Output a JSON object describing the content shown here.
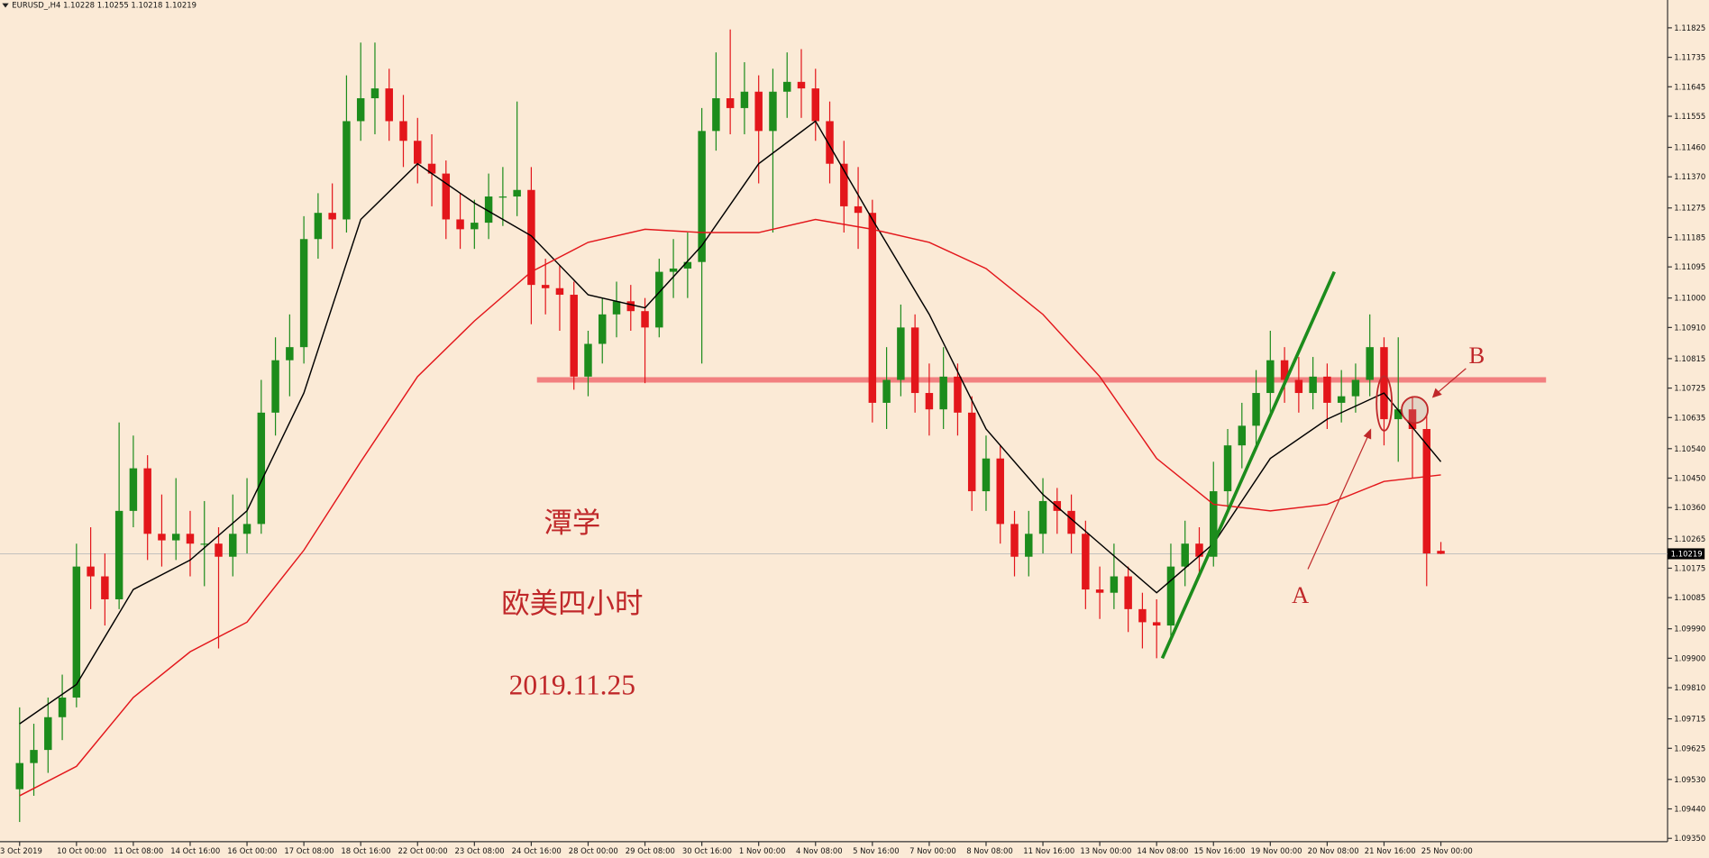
{
  "chart_data": {
    "type": "candlestick",
    "title": "EURUSD_,H4",
    "up_color": "#1c8c1c",
    "down_color": "#e3161b",
    "ylim": [
      1.0934,
      1.1191
    ],
    "yticks": [
      1.11825,
      1.11735,
      1.11645,
      1.11555,
      {
        "value": 1.1146,
        "label": "1.11460"
      },
      {
        "value": 1.1137,
        "label": "1.11370"
      },
      1.11275,
      1.11185,
      1.11095,
      {
        "value": 1.11,
        "label": "1.11000"
      },
      {
        "value": 1.1091,
        "label": "1.10910"
      },
      1.10815,
      1.10725,
      1.10635,
      {
        "value": 1.1054,
        "label": "1.10540"
      },
      {
        "value": 1.1045,
        "label": "1.10450"
      },
      {
        "value": 1.1036,
        "label": "1.10360"
      },
      1.10265,
      1.10175,
      1.10085,
      {
        "value": 1.0999,
        "label": "1.09990"
      },
      {
        "value": 1.099,
        "label": "1.09900"
      },
      {
        "value": 1.0981,
        "label": "1.09810"
      },
      1.09715,
      1.09625,
      {
        "value": 1.0953,
        "label": "1.09530"
      },
      {
        "value": 1.0944,
        "label": "1.09440"
      },
      {
        "value": 1.0935,
        "label": "1.09350"
      }
    ],
    "categories": [
      "3 Oct 2019",
      null,
      null,
      null,
      "10 Oct 00:00",
      null,
      null,
      null,
      "11 Oct 08:00",
      null,
      null,
      null,
      "14 Oct 16:00",
      null,
      null,
      null,
      "16 Oct 00:00",
      null,
      null,
      null,
      "17 Oct 08:00",
      null,
      null,
      null,
      "18 Oct 16:00",
      null,
      null,
      null,
      "22 Oct 00:00",
      null,
      null,
      null,
      "23 Oct 08:00",
      null,
      null,
      null,
      "24 Oct 16:00",
      null,
      null,
      null,
      "28 Oct 00:00",
      null,
      null,
      null,
      "29 Oct 08:00",
      null,
      null,
      null,
      "30 Oct 16:00",
      null,
      null,
      null,
      "1 Nov 00:00",
      null,
      null,
      null,
      "4 Nov 08:00",
      null,
      null,
      null,
      "5 Nov 16:00",
      null,
      null,
      null,
      "7 Nov 00:00",
      null,
      null,
      null,
      "8 Nov 08:00",
      null,
      null,
      null,
      "11 Nov 16:00",
      null,
      null,
      null,
      "13 Nov 00:00",
      null,
      null,
      null,
      "14 Nov 08:00",
      null,
      null,
      null,
      "15 Nov 16:00",
      null,
      null,
      null,
      "19 Nov 00:00",
      null,
      null,
      null,
      "20 Nov 08:00",
      null,
      null,
      null,
      "21 Nov 16:00",
      null,
      null,
      null,
      "25 Nov 00:00"
    ],
    "ohlc": [
      [
        1.095,
        1.0975,
        1.094,
        1.0958
      ],
      [
        1.0958,
        1.097,
        1.0948,
        1.0962
      ],
      [
        1.0962,
        1.0978,
        1.0955,
        1.0972
      ],
      [
        1.0972,
        1.0985,
        1.0965,
        1.0978
      ],
      [
        1.0978,
        1.1025,
        1.0975,
        1.1018
      ],
      [
        1.1018,
        1.103,
        1.1005,
        1.1015
      ],
      [
        1.1015,
        1.1022,
        1.1,
        1.1008
      ],
      [
        1.1008,
        1.1062,
        1.1005,
        1.1035
      ],
      [
        1.1035,
        1.1058,
        1.103,
        1.1048
      ],
      [
        1.1048,
        1.1052,
        1.102,
        1.1028
      ],
      [
        1.1028,
        1.104,
        1.1018,
        1.1026
      ],
      [
        1.1026,
        1.1045,
        1.102,
        1.1028
      ],
      [
        1.1028,
        1.1035,
        1.1015,
        1.1025
      ],
      [
        1.1025,
        1.1038,
        1.1012,
        1.1025
      ],
      [
        1.1025,
        1.103,
        1.0993,
        1.1021
      ],
      [
        1.1021,
        1.104,
        1.1015,
        1.1028
      ],
      [
        1.1028,
        1.1045,
        1.1022,
        1.1031
      ],
      [
        1.1031,
        1.1075,
        1.1028,
        1.1065
      ],
      [
        1.1065,
        1.1088,
        1.1058,
        1.1081
      ],
      [
        1.1081,
        1.1095,
        1.107,
        1.1085
      ],
      [
        1.1085,
        1.1125,
        1.108,
        1.1118
      ],
      [
        1.1118,
        1.1132,
        1.1112,
        1.1126
      ],
      [
        1.1126,
        1.1135,
        1.1115,
        1.1124
      ],
      [
        1.1124,
        1.1168,
        1.112,
        1.1154
      ],
      [
        1.1154,
        1.1178,
        1.1148,
        1.1161
      ],
      [
        1.1161,
        1.1178,
        1.115,
        1.1164
      ],
      [
        1.1164,
        1.117,
        1.1148,
        1.1154
      ],
      [
        1.1154,
        1.1162,
        1.114,
        1.1148
      ],
      [
        1.1148,
        1.1155,
        1.1135,
        1.1141
      ],
      [
        1.1141,
        1.115,
        1.1128,
        1.1138
      ],
      [
        1.1138,
        1.1142,
        1.1118,
        1.1124
      ],
      [
        1.1124,
        1.1132,
        1.1115,
        1.1121
      ],
      [
        1.1121,
        1.113,
        1.1115,
        1.1123
      ],
      [
        1.1123,
        1.1138,
        1.1118,
        1.1131
      ],
      [
        1.1131,
        1.114,
        1.1122,
        1.1131
      ],
      [
        1.1131,
        1.116,
        1.1125,
        1.1133
      ],
      [
        1.1133,
        1.114,
        1.1092,
        1.1104
      ],
      [
        1.1104,
        1.1112,
        1.1095,
        1.1103
      ],
      [
        1.1103,
        1.111,
        1.109,
        1.1101
      ],
      [
        1.1101,
        1.1105,
        1.1072,
        1.1076
      ],
      [
        1.1076,
        1.109,
        1.107,
        1.1086
      ],
      [
        1.1086,
        1.11,
        1.108,
        1.1095
      ],
      [
        1.1095,
        1.1105,
        1.1088,
        1.1099
      ],
      [
        1.1099,
        1.1104,
        1.109,
        1.1096
      ],
      [
        1.1096,
        1.11,
        1.1074,
        1.1091
      ],
      [
        1.1091,
        1.1112,
        1.1088,
        1.1108
      ],
      [
        1.1108,
        1.1118,
        1.11,
        1.1109
      ],
      [
        1.1109,
        1.112,
        1.11,
        1.1111
      ],
      [
        1.1111,
        1.1158,
        1.108,
        1.1151
      ],
      [
        1.1151,
        1.1175,
        1.1145,
        1.1161
      ],
      [
        1.1161,
        1.1182,
        1.115,
        1.1158
      ],
      [
        1.1158,
        1.1172,
        1.115,
        1.1163
      ],
      [
        1.1163,
        1.1168,
        1.1135,
        1.1151
      ],
      [
        1.1151,
        1.117,
        1.112,
        1.1163
      ],
      [
        1.1163,
        1.1175,
        1.1155,
        1.1166
      ],
      [
        1.1166,
        1.1176,
        1.1155,
        1.1164
      ],
      [
        1.1164,
        1.117,
        1.1148,
        1.1154
      ],
      [
        1.1154,
        1.116,
        1.1135,
        1.1141
      ],
      [
        1.1141,
        1.1148,
        1.112,
        1.1128
      ],
      [
        1.1128,
        1.114,
        1.1115,
        1.1126
      ],
      [
        1.1126,
        1.113,
        1.1062,
        1.1068
      ],
      [
        1.1068,
        1.1085,
        1.106,
        1.1075
      ],
      [
        1.1075,
        1.1098,
        1.107,
        1.1091
      ],
      [
        1.1091,
        1.1095,
        1.1065,
        1.1071
      ],
      [
        1.1071,
        1.108,
        1.1058,
        1.1066
      ],
      [
        1.1066,
        1.1085,
        1.106,
        1.1076
      ],
      [
        1.1076,
        1.108,
        1.1058,
        1.1065
      ],
      [
        1.1065,
        1.107,
        1.1035,
        1.1041
      ],
      [
        1.1041,
        1.1058,
        1.1035,
        1.1051
      ],
      [
        1.1051,
        1.1055,
        1.1025,
        1.1031
      ],
      [
        1.1031,
        1.1035,
        1.1015,
        1.1021
      ],
      [
        1.1021,
        1.1035,
        1.1015,
        1.1028
      ],
      [
        1.1028,
        1.1045,
        1.1022,
        1.1038
      ],
      [
        1.1038,
        1.1042,
        1.1028,
        1.1035
      ],
      [
        1.1035,
        1.104,
        1.1022,
        1.1028
      ],
      [
        1.1028,
        1.1032,
        1.1005,
        1.1011
      ],
      [
        1.1011,
        1.1018,
        1.1002,
        1.101
      ],
      [
        1.101,
        1.1025,
        1.1005,
        1.1015
      ],
      [
        1.1015,
        1.1018,
        1.0998,
        1.1005
      ],
      [
        1.1005,
        1.101,
        1.0993,
        1.1001
      ],
      [
        1.1001,
        1.1008,
        1.099,
        1.1
      ],
      [
        1.1,
        1.1025,
        1.0995,
        1.1018
      ],
      [
        1.1018,
        1.1032,
        1.1012,
        1.1025
      ],
      [
        1.1025,
        1.103,
        1.1015,
        1.1021
      ],
      [
        1.1021,
        1.105,
        1.1018,
        1.1041
      ],
      [
        1.1041,
        1.106,
        1.1035,
        1.1055
      ],
      [
        1.1055,
        1.1068,
        1.1048,
        1.1061
      ],
      [
        1.1061,
        1.1078,
        1.1055,
        1.1071
      ],
      [
        1.1071,
        1.109,
        1.1065,
        1.1081
      ],
      [
        1.1081,
        1.1085,
        1.1068,
        1.1075
      ],
      [
        1.1075,
        1.1082,
        1.1065,
        1.1071
      ],
      [
        1.1071,
        1.1082,
        1.1066,
        1.1076
      ],
      [
        1.1076,
        1.108,
        1.106,
        1.1068
      ],
      [
        1.1068,
        1.1078,
        1.1062,
        1.107
      ],
      [
        1.107,
        1.108,
        1.1065,
        1.1075
      ],
      [
        1.1075,
        1.1095,
        1.107,
        1.1085
      ],
      [
        1.1085,
        1.1088,
        1.1055,
        1.1063
      ],
      [
        1.1063,
        1.1088,
        1.105,
        1.1066
      ],
      [
        1.1066,
        1.107,
        1.1045,
        1.106
      ],
      [
        1.106,
        1.1064,
        1.1012,
        1.1022
      ],
      [
        1.10228,
        1.10255,
        1.10218,
        1.10219
      ]
    ],
    "lines": [
      {
        "color": "#000000",
        "x": [
          0,
          4,
          8,
          12,
          16,
          20,
          24,
          28,
          32,
          36,
          40,
          44,
          48,
          52,
          56,
          60,
          64,
          68,
          72,
          76,
          80,
          84,
          88,
          92,
          96,
          100
        ],
        "values": [
          1.097,
          1.0982,
          1.1011,
          1.102,
          1.1035,
          1.1071,
          1.1124,
          1.1141,
          1.1129,
          1.1119,
          1.1101,
          1.1097,
          1.1116,
          1.1141,
          1.1154,
          1.1124,
          1.1095,
          1.106,
          1.104,
          1.1025,
          1.101,
          1.1025,
          1.1051,
          1.1063,
          1.1071,
          1.105
        ]
      },
      {
        "color": "#e3161b",
        "x": [
          0,
          4,
          8,
          12,
          16,
          20,
          24,
          28,
          32,
          36,
          40,
          44,
          48,
          52,
          56,
          60,
          64,
          68,
          72,
          76,
          80,
          84,
          88,
          92,
          96,
          100
        ],
        "values": [
          1.0948,
          1.0957,
          1.0978,
          1.0992,
          1.1001,
          1.1023,
          1.105,
          1.1076,
          1.1093,
          1.1108,
          1.1117,
          1.1121,
          1.112,
          1.112,
          1.1124,
          1.1121,
          1.1117,
          1.1109,
          1.1095,
          1.1076,
          1.1051,
          1.1037,
          1.1035,
          1.1037,
          1.1044,
          1.1046
        ]
      }
    ],
    "level": {
      "color": "#f28080",
      "x": [
        36.4,
        107.4
      ],
      "value": 1.1075
    },
    "trend": {
      "color": "#1c8c1c",
      "x": [
        80.4,
        92.5
      ],
      "values": [
        1.099,
        1.1108
      ]
    },
    "texts": [
      "潭学",
      "欧美四小时",
      "2019.11.25"
    ],
    "markers": [
      "A",
      "B"
    ]
  }
}
